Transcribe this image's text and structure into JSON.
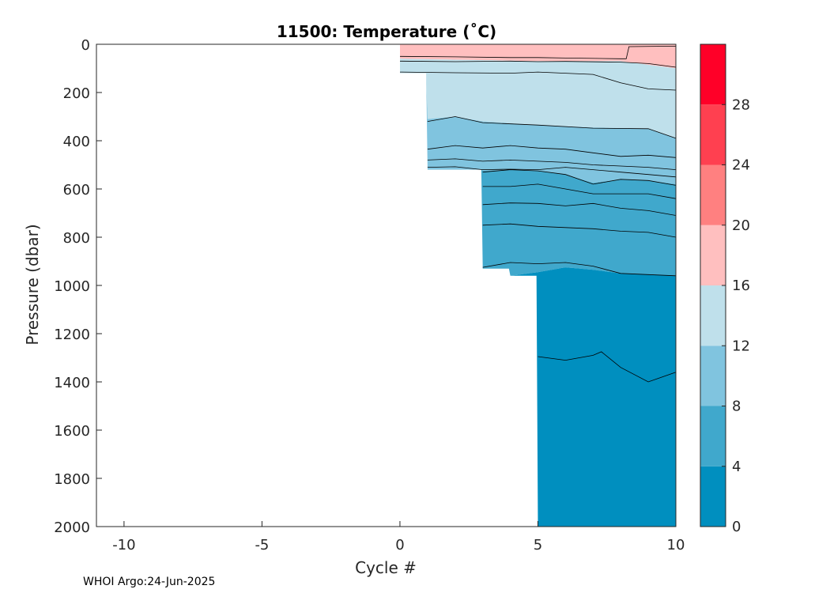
{
  "chart_data": {
    "type": "contour",
    "title": "11500:  Temperature (˚C)",
    "xlabel": "Cycle #",
    "ylabel": "Pressure (dbar)",
    "footer": "WHOI Argo:24-Jun-2025",
    "xlim": [
      -11,
      10
    ],
    "ylim": [
      2000,
      0
    ],
    "y_reversed": true,
    "x_ticks": [
      -10,
      -5,
      0,
      5,
      10
    ],
    "x_tick_labels": [
      "-10",
      "-5",
      "0",
      "5",
      "10"
    ],
    "y_ticks": [
      0,
      200,
      400,
      600,
      800,
      1000,
      1200,
      1400,
      1600,
      1800,
      2000
    ],
    "y_tick_labels": [
      "0",
      "200",
      "400",
      "600",
      "800",
      "1000",
      "1200",
      "1400",
      "1600",
      "1800",
      "2000"
    ],
    "colorbar": {
      "ticks": [
        0,
        4,
        8,
        12,
        16,
        20,
        24,
        28
      ],
      "tick_labels": [
        "0",
        "4",
        "8",
        "12",
        "16",
        "20",
        "24",
        "28"
      ],
      "range": [
        0,
        32
      ],
      "bands": [
        {
          "min": 0,
          "max": 4,
          "color": "#008FBF"
        },
        {
          "min": 4,
          "max": 8,
          "color": "#40A8CC"
        },
        {
          "min": 8,
          "max": 12,
          "color": "#80C4DF"
        },
        {
          "min": 12,
          "max": 16,
          "color": "#BFE0EB"
        },
        {
          "min": 16,
          "max": 20,
          "color": "#FFBFBF"
        },
        {
          "min": 20,
          "max": 24,
          "color": "#FF8080"
        },
        {
          "min": 24,
          "max": 28,
          "color": "#FF4050"
        },
        {
          "min": 28,
          "max": 32,
          "color": "#FF0028"
        }
      ]
    },
    "profile_depths": [
      {
        "cycle": 0,
        "max_pressure": 120
      },
      {
        "cycle": 1,
        "max_pressure": 520
      },
      {
        "cycle": 2,
        "max_pressure": 520
      },
      {
        "cycle": 3,
        "max_pressure": 930
      },
      {
        "cycle": 4,
        "max_pressure": 960
      },
      {
        "cycle": 5,
        "max_pressure": 2000
      },
      {
        "cycle": 6,
        "max_pressure": 2000
      },
      {
        "cycle": 7,
        "max_pressure": 2000
      },
      {
        "cycle": 8,
        "max_pressure": 2000
      },
      {
        "cycle": 9,
        "max_pressure": 2000
      },
      {
        "cycle": 10,
        "max_pressure": 2000
      }
    ],
    "data_bands": [
      {
        "color": "#FFBFBF",
        "label": "16-20",
        "top": [
          [
            0,
            0
          ],
          [
            10,
            0
          ]
        ],
        "bottom": [
          [
            0,
            60
          ],
          [
            5,
            70
          ],
          [
            8,
            70
          ],
          [
            10,
            100
          ]
        ]
      },
      {
        "color": "#BFE0EB",
        "label": "12-16",
        "top": [
          [
            0,
            60
          ],
          [
            5,
            70
          ],
          [
            8,
            70
          ],
          [
            10,
            100
          ]
        ],
        "bottom": [
          [
            1,
            310
          ],
          [
            2,
            300
          ],
          [
            3,
            320
          ],
          [
            5,
            335
          ],
          [
            7,
            345
          ],
          [
            9,
            350
          ],
          [
            10,
            390
          ]
        ]
      },
      {
        "color": "#80C4DF",
        "label": "8-12",
        "top": [
          [
            1,
            310
          ],
          [
            2,
            300
          ],
          [
            3,
            320
          ],
          [
            5,
            335
          ],
          [
            7,
            345
          ],
          [
            9,
            350
          ],
          [
            10,
            390
          ]
        ],
        "bottom": [
          [
            3,
            525
          ],
          [
            4,
            520
          ],
          [
            5,
            525
          ],
          [
            6,
            540
          ],
          [
            7,
            575
          ],
          [
            8,
            560
          ],
          [
            9,
            565
          ],
          [
            10,
            580
          ]
        ]
      },
      {
        "color": "#40A8CC",
        "label": "4-8",
        "top": [
          [
            3,
            525
          ],
          [
            4,
            520
          ],
          [
            5,
            525
          ],
          [
            6,
            540
          ],
          [
            7,
            575
          ],
          [
            8,
            560
          ],
          [
            9,
            565
          ],
          [
            10,
            580
          ]
        ],
        "bottom": [
          [
            3,
            930
          ],
          [
            4,
            960
          ],
          [
            5,
            945
          ],
          [
            6,
            925
          ],
          [
            7,
            935
          ],
          [
            8,
            950
          ],
          [
            9,
            955
          ],
          [
            10,
            960
          ]
        ]
      },
      {
        "color": "#008FBF",
        "label": "0-4",
        "top": [
          [
            3,
            930
          ],
          [
            4,
            960
          ],
          [
            5,
            945
          ],
          [
            6,
            925
          ],
          [
            7,
            935
          ],
          [
            8,
            950
          ],
          [
            9,
            955
          ],
          [
            10,
            960
          ]
        ],
        "bottom": [
          [
            5,
            2000
          ],
          [
            10,
            2000
          ]
        ]
      }
    ],
    "contour_lines": [
      {
        "level": 18,
        "points": [
          [
            0,
            50
          ],
          [
            2,
            52
          ],
          [
            4,
            55
          ],
          [
            5,
            55
          ],
          [
            6,
            57
          ],
          [
            8,
            60
          ],
          [
            8.2,
            60
          ],
          [
            8.3,
            10
          ],
          [
            10,
            8
          ]
        ]
      },
      {
        "level": 16,
        "points": [
          [
            0,
            70
          ],
          [
            2,
            72
          ],
          [
            4,
            70
          ],
          [
            5,
            72
          ],
          [
            6,
            71
          ],
          [
            8,
            74
          ],
          [
            9,
            80
          ],
          [
            10,
            95
          ]
        ]
      },
      {
        "level": 14,
        "points": [
          [
            0,
            115
          ],
          [
            2,
            118
          ],
          [
            4,
            120
          ],
          [
            5,
            115
          ],
          [
            7,
            125
          ],
          [
            8,
            160
          ],
          [
            9,
            185
          ],
          [
            10,
            190
          ]
        ]
      },
      {
        "level": 12,
        "points": [
          [
            1,
            320
          ],
          [
            2,
            300
          ],
          [
            3,
            325
          ],
          [
            5,
            335
          ],
          [
            7,
            348
          ],
          [
            9,
            350
          ],
          [
            10,
            390
          ]
        ]
      },
      {
        "level": 11,
        "points": [
          [
            1,
            435
          ],
          [
            2,
            420
          ],
          [
            3,
            430
          ],
          [
            4,
            420
          ],
          [
            5,
            430
          ],
          [
            6,
            435
          ],
          [
            7,
            450
          ],
          [
            8,
            465
          ],
          [
            9,
            460
          ],
          [
            10,
            470
          ]
        ]
      },
      {
        "level": 10,
        "points": [
          [
            1,
            480
          ],
          [
            2,
            475
          ],
          [
            3,
            485
          ],
          [
            4,
            480
          ],
          [
            5,
            485
          ],
          [
            6,
            490
          ],
          [
            7,
            500
          ],
          [
            8,
            505
          ],
          [
            9,
            510
          ],
          [
            10,
            520
          ]
        ]
      },
      {
        "level": 9,
        "points": [
          [
            1,
            510
          ],
          [
            2,
            508
          ],
          [
            3,
            520
          ],
          [
            4,
            518
          ],
          [
            5,
            520
          ],
          [
            6,
            510
          ],
          [
            7,
            520
          ],
          [
            8,
            530
          ],
          [
            9,
            540
          ],
          [
            10,
            550
          ]
        ]
      },
      {
        "level": 8,
        "points": [
          [
            3,
            530
          ],
          [
            4,
            520
          ],
          [
            5,
            525
          ],
          [
            6,
            540
          ],
          [
            7,
            580
          ],
          [
            8,
            560
          ],
          [
            9,
            565
          ],
          [
            10,
            585
          ]
        ]
      },
      {
        "level": 7,
        "points": [
          [
            3,
            590
          ],
          [
            4,
            590
          ],
          [
            5,
            580
          ],
          [
            6,
            600
          ],
          [
            7,
            620
          ],
          [
            8,
            620
          ],
          [
            9,
            620
          ],
          [
            10,
            640
          ]
        ]
      },
      {
        "level": 6,
        "points": [
          [
            3,
            665
          ],
          [
            4,
            658
          ],
          [
            5,
            660
          ],
          [
            6,
            670
          ],
          [
            7,
            660
          ],
          [
            8,
            680
          ],
          [
            9,
            690
          ],
          [
            10,
            710
          ]
        ]
      },
      {
        "level": 5,
        "points": [
          [
            3,
            750
          ],
          [
            4,
            745
          ],
          [
            5,
            755
          ],
          [
            6,
            760
          ],
          [
            7,
            765
          ],
          [
            8,
            775
          ],
          [
            9,
            780
          ],
          [
            10,
            800
          ]
        ]
      },
      {
        "level": 4,
        "points": [
          [
            3,
            925
          ],
          [
            4,
            905
          ],
          [
            5,
            910
          ],
          [
            6,
            905
          ],
          [
            7,
            920
          ],
          [
            8,
            950
          ],
          [
            9,
            955
          ],
          [
            10,
            960
          ]
        ]
      },
      {
        "level": 3,
        "points": [
          [
            5,
            1295
          ],
          [
            6,
            1310
          ],
          [
            7,
            1290
          ],
          [
            7.3,
            1275
          ],
          [
            8,
            1340
          ],
          [
            9,
            1400
          ],
          [
            9.5,
            1380
          ],
          [
            10,
            1360
          ]
        ]
      }
    ]
  }
}
